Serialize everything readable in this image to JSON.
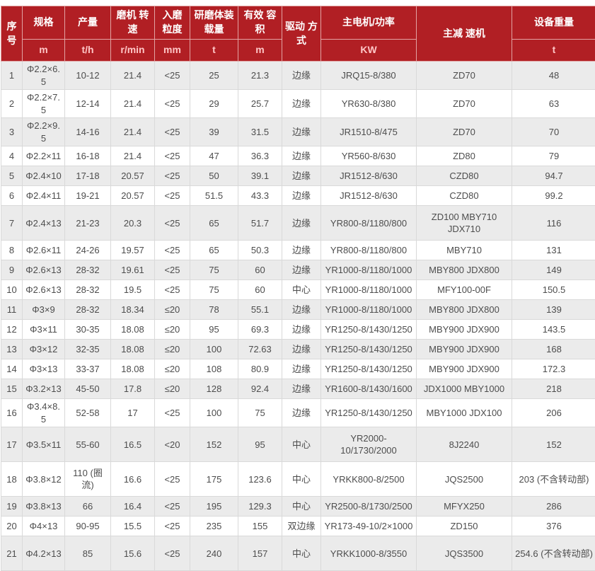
{
  "colors": {
    "header_bg": "#b11f24",
    "header_text": "#ffffff",
    "header_unit_text": "#ffc6c6",
    "row_alt_bg": "#ebebeb",
    "row_bg": "#ffffff",
    "cell_text": "#4d4d4d",
    "grid_line": "#d9d9d9",
    "header_grid_line": "#e2a3a3"
  },
  "table": {
    "columns": [
      {
        "key": "no",
        "label": "序号",
        "unit": null
      },
      {
        "key": "spec",
        "label": "规格",
        "unit": "m"
      },
      {
        "key": "output",
        "label": "产量",
        "unit": "t/h"
      },
      {
        "key": "speed",
        "label": "磨机 转速",
        "unit": "r/min"
      },
      {
        "key": "feed",
        "label": "入磨 粒度",
        "unit": "mm"
      },
      {
        "key": "load",
        "label": "研磨体装载量",
        "unit": "t"
      },
      {
        "key": "volume",
        "label": "有效 容积",
        "unit": "m"
      },
      {
        "key": "drive",
        "label": "驱动 方式",
        "unit": null
      },
      {
        "key": "motor",
        "label": "主电机/功率",
        "unit": "KW"
      },
      {
        "key": "reducer",
        "label": "主减 速机",
        "unit": null
      },
      {
        "key": "weight",
        "label": "设备重量",
        "unit": "t"
      }
    ],
    "tall_rows": [
      7,
      17,
      18,
      21
    ],
    "rows": [
      [
        "1",
        "Φ2.2×6.5",
        "10-12",
        "21.4",
        "<25",
        "25",
        "21.3",
        "边缘",
        "JRQ15-8/380",
        "ZD70",
        "48"
      ],
      [
        "2",
        "Φ2.2×7.5",
        "12-14",
        "21.4",
        "<25",
        "29",
        "25.7",
        "边缘",
        "YR630-8/380",
        "ZD70",
        "63"
      ],
      [
        "3",
        "Φ2.2×9.5",
        "14-16",
        "21.4",
        "<25",
        "39",
        "31.5",
        "边缘",
        "JR1510-8/475",
        "ZD70",
        "70"
      ],
      [
        "4",
        "Φ2.2×11",
        "16-18",
        "21.4",
        "<25",
        "47",
        "36.3",
        "边缘",
        "YR560-8/630",
        "ZD80",
        "79"
      ],
      [
        "5",
        "Φ2.4×10",
        "17-18",
        "20.57",
        "<25",
        "50",
        "39.1",
        "边缘",
        "JR1512-8/630",
        "CZD80",
        "94.7"
      ],
      [
        "6",
        "Φ2.4×11",
        "19-21",
        "20.57",
        "<25",
        "51.5",
        "43.3",
        "边缘",
        "JR1512-8/630",
        "CZD80",
        "99.2"
      ],
      [
        "7",
        "Φ2.4×13",
        "21-23",
        "20.3",
        "<25",
        "65",
        "51.7",
        "边缘",
        "YR800-8/1180/800",
        "ZD100 MBY710 JDX710",
        "116"
      ],
      [
        "8",
        "Φ2.6×11",
        "24-26",
        "19.57",
        "<25",
        "65",
        "50.3",
        "边缘",
        "YR800-8/1180/800",
        "MBY710",
        "131"
      ],
      [
        "9",
        "Φ2.6×13",
        "28-32",
        "19.61",
        "<25",
        "75",
        "60",
        "边缘",
        "YR1000-8/1180/1000",
        "MBY800 JDX800",
        "149"
      ],
      [
        "10",
        "Φ2.6×13",
        "28-32",
        "19.5",
        "<25",
        "75",
        "60",
        "中心",
        "YR1000-8/1180/1000",
        "MFY100-00F",
        "150.5"
      ],
      [
        "11",
        "Φ3×9",
        "28-32",
        "18.34",
        "≤20",
        "78",
        "55.1",
        "边缘",
        "YR1000-8/1180/1000",
        "MBY800 JDX800",
        "139"
      ],
      [
        "12",
        "Φ3×11",
        "30-35",
        "18.08",
        "≤20",
        "95",
        "69.3",
        "边缘",
        "YR1250-8/1430/1250",
        "MBY900 JDX900",
        "143.5"
      ],
      [
        "13",
        "Φ3×12",
        "32-35",
        "18.08",
        "≤20",
        "100",
        "72.63",
        "边缘",
        "YR1250-8/1430/1250",
        "MBY900 JDX900",
        "168"
      ],
      [
        "14",
        "Φ3×13",
        "33-37",
        "18.08",
        "≤20",
        "108",
        "80.9",
        "边缘",
        "YR1250-8/1430/1250",
        "MBY900 JDX900",
        "172.3"
      ],
      [
        "15",
        "Φ3.2×13",
        "45-50",
        "17.8",
        "≤20",
        "128",
        "92.4",
        "边缘",
        "YR1600-8/1430/1600",
        "JDX1000 MBY1000",
        "218"
      ],
      [
        "16",
        "Φ3.4×8.5",
        "52-58",
        "17",
        "<25",
        "100",
        "75",
        "边缘",
        "YR1250-8/1430/1250",
        "MBY1000 JDX100",
        "206"
      ],
      [
        "17",
        "Φ3.5×11",
        "55-60",
        "16.5",
        "<20",
        "152",
        "95",
        "中心",
        "YR2000-10/1730/2000",
        "8J2240",
        "152"
      ],
      [
        "18",
        "Φ3.8×12",
        "110 (圈流)",
        "16.6",
        "<25",
        "175",
        "123.6",
        "中心",
        "YRKK800-8/2500",
        "JQS2500",
        "203 (不含转动部)"
      ],
      [
        "19",
        "Φ3.8×13",
        "66",
        "16.4",
        "<25",
        "195",
        "129.3",
        "中心",
        "YR2500-8/1730/2500",
        "MFYX250",
        "286"
      ],
      [
        "20",
        "Φ4×13",
        "90-95",
        "15.5",
        "<25",
        "235",
        "155",
        "双边缘",
        "YR173-49-10/2×1000",
        "ZD150",
        "376"
      ],
      [
        "21",
        "Φ4.2×13",
        "85",
        "15.6",
        "<25",
        "240",
        "157",
        "中心",
        "YRKK1000-8/3550",
        "JQS3500",
        "254.6 (不含转动部)"
      ]
    ]
  }
}
